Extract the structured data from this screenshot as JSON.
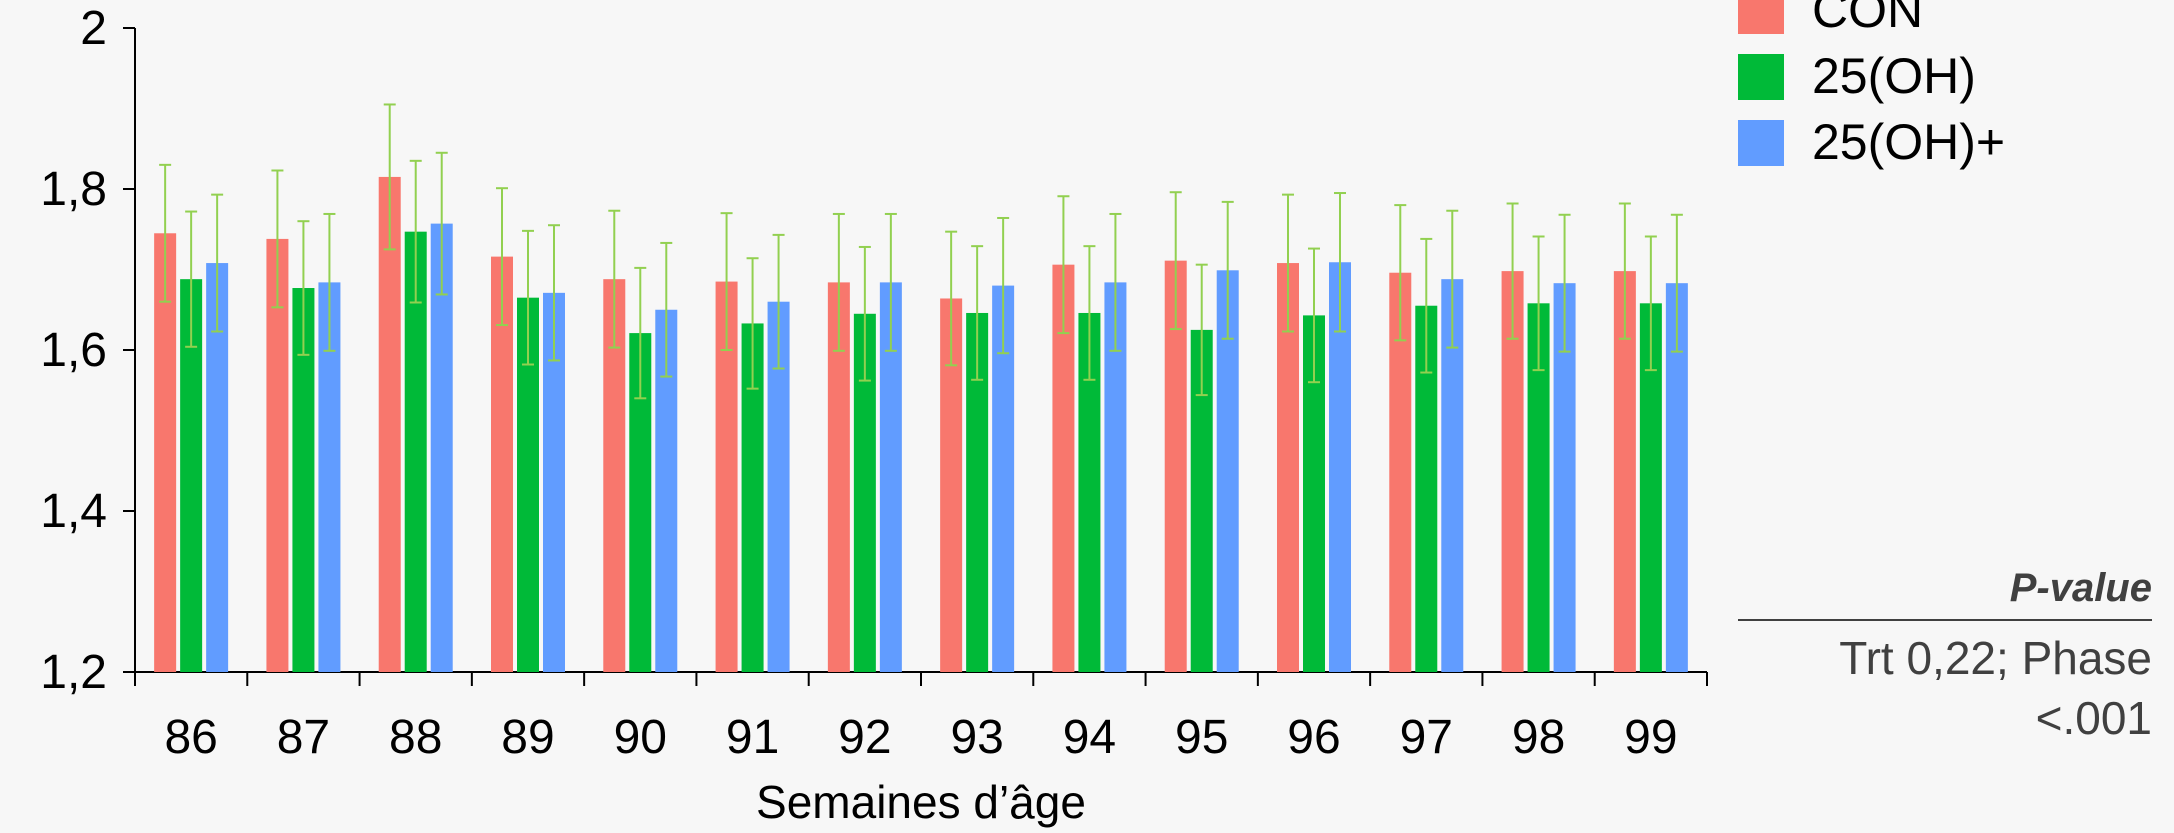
{
  "chart_data": {
    "type": "bar",
    "xlabel": "Semaines d’âge",
    "ylabel": "",
    "ylim": [
      1.2,
      2.0
    ],
    "yticks": [
      1.2,
      1.4,
      1.6,
      1.8,
      2.0
    ],
    "ytick_labels": [
      "1,2",
      "1,4",
      "1,6",
      "1,8",
      "2"
    ],
    "grid": false,
    "legend_position": "top-right",
    "categories": [
      "86",
      "87",
      "88",
      "89",
      "90",
      "91",
      "92",
      "93",
      "94",
      "95",
      "96",
      "97",
      "98",
      "99"
    ],
    "series": [
      {
        "name": "CON",
        "color": "#f8776d",
        "values": [
          1.745,
          1.738,
          1.815,
          1.716,
          1.688,
          1.685,
          1.684,
          1.664,
          1.706,
          1.711,
          1.708,
          1.696,
          1.698,
          1.698
        ],
        "error": [
          0.085,
          0.085,
          0.09,
          0.085,
          0.085,
          0.085,
          0.085,
          0.083,
          0.085,
          0.085,
          0.085,
          0.084,
          0.084,
          0.084
        ]
      },
      {
        "name": "25(OH)",
        "color": "#00ba38",
        "values": [
          1.688,
          1.677,
          1.747,
          1.665,
          1.621,
          1.633,
          1.645,
          1.646,
          1.646,
          1.625,
          1.643,
          1.655,
          1.658,
          1.658
        ],
        "error": [
          0.084,
          0.083,
          0.088,
          0.083,
          0.081,
          0.081,
          0.083,
          0.083,
          0.083,
          0.081,
          0.083,
          0.083,
          0.083,
          0.083
        ]
      },
      {
        "name": "25(OH)+",
        "color": "#619cff",
        "values": [
          1.708,
          1.684,
          1.757,
          1.671,
          1.65,
          1.66,
          1.684,
          1.68,
          1.684,
          1.699,
          1.709,
          1.688,
          1.683,
          1.683
        ],
        "error": [
          0.085,
          0.085,
          0.088,
          0.084,
          0.083,
          0.083,
          0.085,
          0.084,
          0.085,
          0.085,
          0.086,
          0.085,
          0.085,
          0.085
        ]
      }
    ],
    "errorbar_color": "#92d050"
  },
  "annotation": {
    "title": "P-value",
    "text": "Trt 0,22; Phase <.001"
  }
}
